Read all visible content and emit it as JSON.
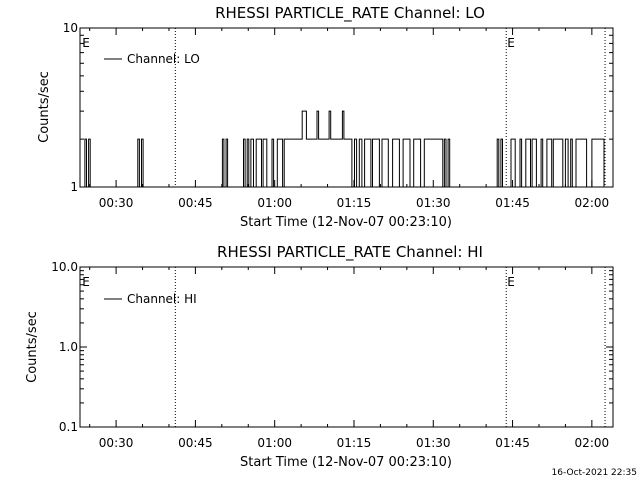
{
  "footer": {
    "timestamp": "16-Oct-2021 22:35"
  },
  "chart_data": [
    {
      "type": "line",
      "title": "RHESSI PARTICLE_RATE Channel: LO",
      "xlabel": "Start Time (12-Nov-07 00:23:10)",
      "ylabel": "Counts/sec",
      "yscale": "log",
      "ylim": [
        1,
        10
      ],
      "y_tick_values": [
        1,
        10
      ],
      "y_ticks": [
        "1",
        "10"
      ],
      "xlim_minutes": [
        23.17,
        124.0
      ],
      "x_tick_values": [
        30,
        45,
        60,
        75,
        90,
        105,
        120
      ],
      "x_ticks": [
        "00:30",
        "00:45",
        "01:00",
        "01:15",
        "01:30",
        "01:45",
        "02:00"
      ],
      "legend": {
        "position": "top-left",
        "entries": [
          "Channel: LO"
        ]
      },
      "markers": [
        {
          "label": "E",
          "x_minutes": 23.4,
          "dotted": false
        },
        {
          "label": "",
          "x_minutes": 41.2,
          "dotted": true
        },
        {
          "label": "E",
          "x_minutes": 103.8,
          "dotted": true
        },
        {
          "label": "",
          "x_minutes": 122.5,
          "dotted": true
        }
      ],
      "series": [
        {
          "name": "Channel: LO",
          "x_minutes": [
            23.8,
            24.1,
            24.4,
            24.8,
            25.1,
            33.8,
            34.1,
            34.4,
            34.8,
            35.1,
            49.8,
            50.1,
            50.4,
            50.8,
            51.1,
            53.8,
            54.1,
            54.4,
            54.8,
            55.1,
            55.5,
            56.0,
            56.5,
            57.5,
            57.8,
            58.5,
            59.5,
            59.8,
            60.5,
            61.5,
            61.8,
            62.1,
            62.6,
            63.6,
            64.4,
            65.2,
            66.0,
            66.4,
            67.0,
            67.5,
            68.0,
            68.3,
            68.8,
            69.5,
            70.3,
            70.6,
            71.3,
            72.0,
            72.8,
            73.1,
            73.8,
            74.6,
            75.1,
            75.5,
            76.0,
            76.5,
            77.0,
            77.5,
            78.2,
            78.5,
            79.5,
            79.8,
            80.3,
            81.2,
            81.5,
            82.3,
            83.3,
            83.6,
            84.3,
            85.3,
            85.6,
            86.3,
            87.3,
            87.6,
            88.3,
            91.8,
            92.1,
            92.4,
            92.8,
            93.1,
            101.8,
            102.1,
            102.4,
            102.8,
            103.1,
            104.4,
            104.7,
            105.5,
            106.4,
            106.7,
            107.5,
            108.4,
            108.7,
            109.5,
            110.4,
            110.7,
            111.5,
            112.4,
            112.7,
            113.0,
            113.4,
            114.5,
            115.0,
            115.5,
            116.0,
            116.3,
            117.0,
            117.6,
            118.0,
            118.3,
            119.0,
            120.0,
            120.3,
            121.0,
            122.3
          ],
          "values": [
            1,
            2,
            1,
            2,
            1,
            1,
            2,
            1,
            2,
            1,
            1,
            2,
            1,
            2,
            1,
            1,
            2,
            1,
            2,
            1,
            2,
            1,
            2,
            1,
            2,
            1,
            2,
            1,
            2,
            1,
            2,
            2,
            2,
            2,
            2,
            3,
            2,
            2,
            2,
            2,
            3,
            2,
            2,
            2,
            3,
            2,
            2,
            2,
            3,
            2,
            2,
            1,
            2,
            1,
            2,
            1,
            2,
            2,
            1,
            2,
            2,
            1,
            2,
            2,
            1,
            2,
            2,
            1,
            2,
            2,
            1,
            2,
            2,
            1,
            2,
            1,
            2,
            1,
            2,
            1,
            1,
            2,
            1,
            2,
            1,
            1,
            2,
            1,
            2,
            1,
            2,
            1,
            2,
            1,
            2,
            1,
            2,
            1,
            2,
            2,
            2,
            1,
            2,
            1,
            2,
            1,
            2,
            2,
            2,
            2,
            1,
            2,
            2,
            2,
            1
          ]
        }
      ]
    },
    {
      "type": "line",
      "title": "RHESSI PARTICLE_RATE Channel: HI",
      "xlabel": "Start Time (12-Nov-07 00:23:10)",
      "ylabel": "Counts/sec",
      "yscale": "log",
      "ylim": [
        0.1,
        10
      ],
      "y_tick_values": [
        0.1,
        1,
        10
      ],
      "y_ticks": [
        "0.1",
        "1.0",
        "10.0"
      ],
      "xlim_minutes": [
        23.17,
        124.0
      ],
      "x_tick_values": [
        30,
        45,
        60,
        75,
        90,
        105,
        120
      ],
      "x_ticks": [
        "00:30",
        "00:45",
        "01:00",
        "01:15",
        "01:30",
        "01:45",
        "02:00"
      ],
      "legend": {
        "position": "top-left",
        "entries": [
          "Channel: HI"
        ]
      },
      "markers": [
        {
          "label": "E",
          "x_minutes": 23.4,
          "dotted": false
        },
        {
          "label": "",
          "x_minutes": 41.2,
          "dotted": true
        },
        {
          "label": "E",
          "x_minutes": 103.8,
          "dotted": true
        },
        {
          "label": "",
          "x_minutes": 122.5,
          "dotted": true
        }
      ],
      "series": [
        {
          "name": "Channel: HI",
          "x_minutes": [],
          "values": []
        }
      ]
    }
  ]
}
